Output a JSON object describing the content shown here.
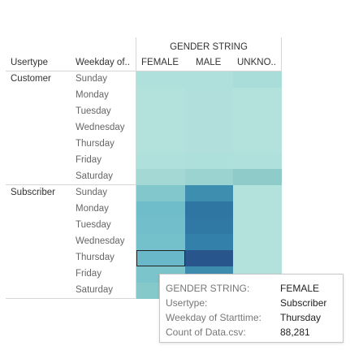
{
  "headers": {
    "column_group_title": "GENDER STRING",
    "usertype": "Usertype",
    "weekday": "Weekday of..",
    "columns": [
      "FEMALE",
      "MALE",
      "UNKNO.."
    ]
  },
  "rows": [
    {
      "usertype": "Customer",
      "weekday": "Sunday"
    },
    {
      "usertype": "",
      "weekday": "Monday"
    },
    {
      "usertype": "",
      "weekday": "Tuesday"
    },
    {
      "usertype": "",
      "weekday": "Wednesday"
    },
    {
      "usertype": "",
      "weekday": "Thursday"
    },
    {
      "usertype": "",
      "weekday": "Friday"
    },
    {
      "usertype": "",
      "weekday": "Saturday"
    },
    {
      "usertype": "Subscriber",
      "weekday": "Sunday"
    },
    {
      "usertype": "",
      "weekday": "Monday"
    },
    {
      "usertype": "",
      "weekday": "Tuesday"
    },
    {
      "usertype": "",
      "weekday": "Wednesday"
    },
    {
      "usertype": "",
      "weekday": "Thursday"
    },
    {
      "usertype": "",
      "weekday": "Friday"
    },
    {
      "usertype": "",
      "weekday": "Saturday"
    }
  ],
  "cell_colors": [
    [
      "#b0e0dc",
      "#b0e0dc",
      "#a9ddd9"
    ],
    [
      "#b3e2dd",
      "#b1e0dc",
      "#b3e2dd"
    ],
    [
      "#b3e2dd",
      "#b1e0dc",
      "#b3e2dd"
    ],
    [
      "#b3e2dd",
      "#b1e0dc",
      "#b3e2dd"
    ],
    [
      "#b3e2dd",
      "#b1e0dc",
      "#b3e2dd"
    ],
    [
      "#b0e0dc",
      "#addfdb",
      "#b0e0dc"
    ],
    [
      "#a3d8d4",
      "#9ad3d0",
      "#8fcbc9"
    ],
    [
      "#82c7cb",
      "#3e8eb0",
      "#b3e2dd"
    ],
    [
      "#6fbccb",
      "#2f76a3",
      "#b3e2dd"
    ],
    [
      "#72bfcb",
      "#3079a5",
      "#b3e2dd"
    ],
    [
      "#74c0cb",
      "#3381aa",
      "#b3e2dd"
    ],
    [
      "#68b8c9",
      "#28568c",
      "#b3e2dd"
    ],
    [
      "#7bc4cb",
      "#3d8cae",
      "#b3e2dd"
    ],
    [
      "#86c9cb",
      null,
      null
    ]
  ],
  "highlight_cell": {
    "row": 11,
    "col": 0
  },
  "tooltip": {
    "rows": [
      {
        "key": "GENDER STRING:",
        "value": "FEMALE"
      },
      {
        "key": "Usertype:",
        "value": "Subscriber"
      },
      {
        "key": "Weekday of Starttime:",
        "value": "Thursday"
      },
      {
        "key": "Count of Data.csv:",
        "value": "88,281"
      }
    ]
  },
  "chart_data": {
    "type": "heatmap",
    "title": "",
    "x_group_label": "GENDER STRING",
    "x_categories": [
      "FEMALE",
      "MALE",
      "UNKNO.."
    ],
    "y_fields": [
      "Usertype",
      "Weekday of.."
    ],
    "y_categories": [
      [
        "Customer",
        "Sunday"
      ],
      [
        "Customer",
        "Monday"
      ],
      [
        "Customer",
        "Tuesday"
      ],
      [
        "Customer",
        "Wednesday"
      ],
      [
        "Customer",
        "Thursday"
      ],
      [
        "Customer",
        "Friday"
      ],
      [
        "Customer",
        "Saturday"
      ],
      [
        "Subscriber",
        "Sunday"
      ],
      [
        "Subscriber",
        "Monday"
      ],
      [
        "Subscriber",
        "Tuesday"
      ],
      [
        "Subscriber",
        "Wednesday"
      ],
      [
        "Subscriber",
        "Thursday"
      ],
      [
        "Subscriber",
        "Friday"
      ],
      [
        "Subscriber",
        "Saturday"
      ]
    ],
    "measure": "Count of Data.csv",
    "known_values": [
      {
        "usertype": "Subscriber",
        "weekday": "Thursday",
        "gender": "FEMALE",
        "value": 88281
      }
    ]
  }
}
